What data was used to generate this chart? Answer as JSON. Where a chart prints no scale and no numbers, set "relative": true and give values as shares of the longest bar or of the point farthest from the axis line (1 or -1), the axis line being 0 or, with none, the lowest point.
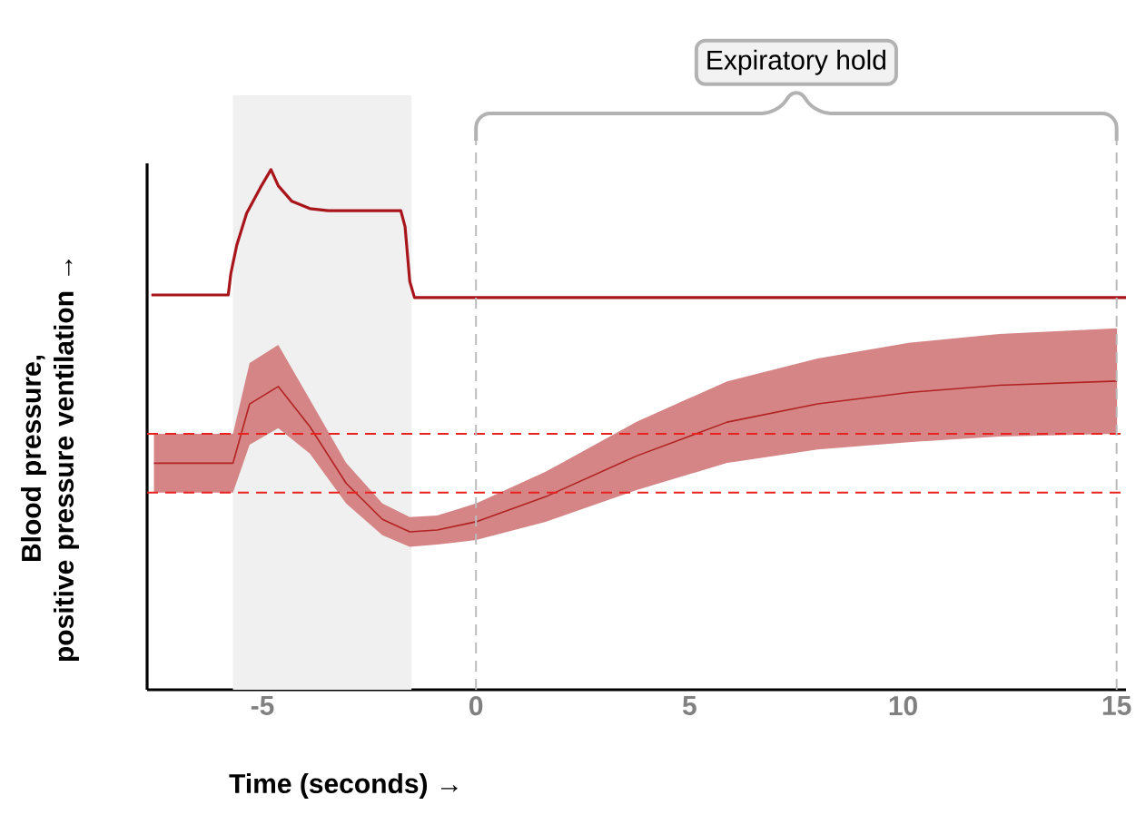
{
  "chart_data": {
    "type": "line",
    "relative": true,
    "xlabel": "Time (seconds) →",
    "ylabel": "Blood pressure,\npositive pressure  ventilation →",
    "xlim": [
      -7.7,
      15.22
    ],
    "xticks": [
      -5,
      0,
      5,
      10,
      15
    ],
    "grid": false,
    "legend": false,
    "line_style": "solid",
    "marker": "none",
    "series": [
      {
        "color": "#a8151b",
        "x": [
          -7.6,
          -5.8,
          -5.74,
          -5.6,
          -5.37,
          -5.05,
          -4.8,
          -4.63,
          -4.31,
          -3.89,
          -3.46,
          -1.76,
          -1.66,
          -1.55,
          -1.44,
          15.22
        ],
        "values": [
          0.759,
          0.759,
          0.8,
          0.855,
          0.916,
          0.965,
          1.0,
          0.969,
          0.939,
          0.925,
          0.921,
          0.921,
          0.89,
          0.785,
          0.754,
          0.754
        ]
      },
      {
        "color": "#b22222",
        "x": [
          -7.54,
          -5.69,
          -5.3,
          -4.63,
          -3.89,
          -3.04,
          -2.19,
          -1.55,
          -0.91,
          0,
          1.63,
          3.76,
          5.88,
          8.0,
          10.13,
          12.25,
          15.01
        ],
        "values": [
          0.4355,
          0.4355,
          0.5495,
          0.583,
          0.506,
          0.397,
          0.3275,
          0.3035,
          0.307,
          0.323,
          0.371,
          0.4495,
          0.5145,
          0.5495,
          0.5715,
          0.5855,
          0.5935
        ],
        "lower": [
          0.379,
          0.379,
          0.471,
          0.503,
          0.454,
          0.358,
          0.297,
          0.275,
          0.279,
          0.288,
          0.323,
          0.384,
          0.436,
          0.462,
          0.476,
          0.487,
          0.492
        ],
        "upper": [
          0.492,
          0.492,
          0.628,
          0.663,
          0.558,
          0.436,
          0.358,
          0.332,
          0.335,
          0.358,
          0.419,
          0.515,
          0.593,
          0.637,
          0.667,
          0.684,
          0.695
        ]
      }
    ],
    "ref_lines": [
      {
        "axis": "y",
        "value": 0.492,
        "color": "#e8231f",
        "line_style": "dashed"
      },
      {
        "axis": "y",
        "value": 0.379,
        "color": "#e8231f",
        "line_style": "dashed"
      },
      {
        "axis": "x",
        "value": 0,
        "color": "#bbbbbb",
        "line_style": "dashed"
      },
      {
        "axis": "x",
        "value": 15,
        "color": "#bbbbbb",
        "line_style": "dashed"
      }
    ],
    "bands": [
      {
        "axis": "x",
        "from": -5.69,
        "to": -1.51,
        "color": "#f0f0f0"
      }
    ],
    "annotations": [
      "Expiratory hold"
    ]
  }
}
